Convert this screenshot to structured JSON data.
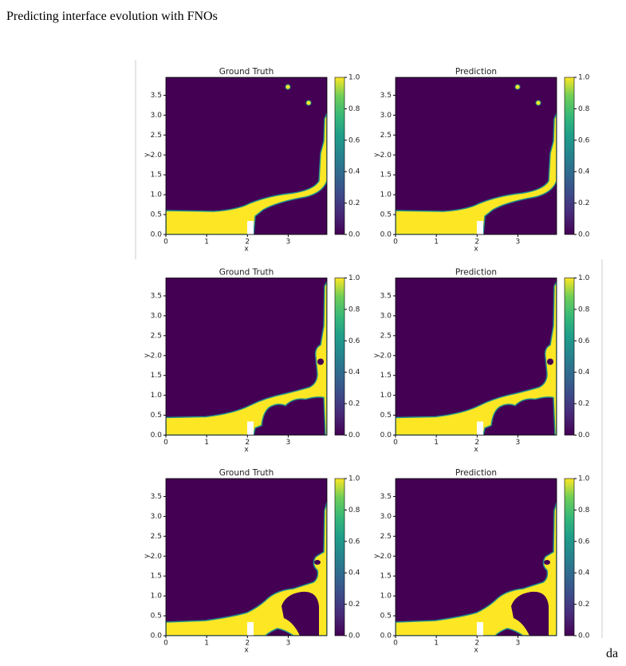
{
  "header": {
    "title": "Predicting interface evolution with FNOs"
  },
  "axes": {
    "xlabel": "x",
    "ylabel": "y",
    "xlim": [
      0,
      3.95
    ],
    "ylim": [
      0,
      3.95
    ],
    "xticks": [
      0,
      1,
      2,
      3
    ],
    "yticks": [
      {
        "value": 0,
        "label": "0.0"
      },
      0.5,
      {
        "value": 1,
        "label": "1.0"
      },
      1.5,
      {
        "value": 2,
        "label": "2.0"
      },
      2.5,
      {
        "value": 3,
        "label": "3.0"
      },
      3.5
    ],
    "colorbar": {
      "lim": [
        0,
        1
      ],
      "ticks": [
        {
          "value": 0,
          "label": "0.0"
        },
        0.2,
        0.4,
        0.6,
        0.8,
        {
          "value": 1,
          "label": "1.0"
        }
      ]
    }
  },
  "panels": [
    {
      "title": "Ground Truth"
    },
    {
      "title": "Prediction"
    },
    {
      "title": "Ground Truth"
    },
    {
      "title": "Prediction"
    },
    {
      "title": "Ground Truth"
    },
    {
      "title": "Prediction"
    }
  ],
  "footer": {
    "text": "da"
  }
}
